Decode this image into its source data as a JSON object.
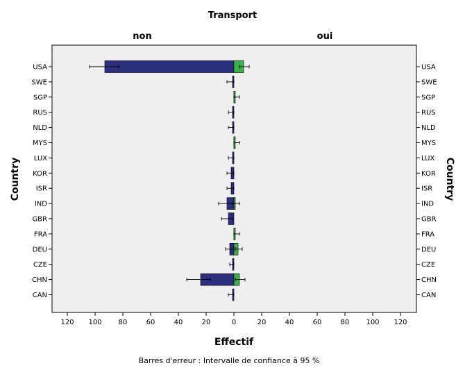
{
  "chart_data": {
    "type": "bar",
    "title": "Transport",
    "panels": [
      "non",
      "oui"
    ],
    "xlabel": "Effectif",
    "ylabel": "Country",
    "footnote": "Barres d'erreur : Intervalle de confiance à 95 %",
    "xlim": [
      -130,
      130
    ],
    "xticks": [
      120,
      100,
      80,
      60,
      40,
      20,
      0,
      20,
      40,
      60,
      80,
      100,
      120
    ],
    "categories": [
      "USA",
      "SWE",
      "SGP",
      "RUS",
      "NLD",
      "MYS",
      "LUX",
      "KOR",
      "ISR",
      "IND",
      "GBR",
      "FRA",
      "DEU",
      "CZE",
      "CHN",
      "CAN"
    ],
    "series": [
      {
        "name": "non",
        "color": "#2e2e7e",
        "values": [
          93,
          1,
          0,
          1,
          1,
          0,
          1,
          2,
          2,
          5,
          4,
          0,
          3,
          1,
          24,
          1
        ],
        "ci_low": [
          83,
          0,
          0,
          0,
          0,
          0,
          0,
          0,
          0,
          1,
          1,
          0,
          0,
          0,
          17,
          0
        ],
        "ci_high": [
          104,
          5,
          0,
          4,
          4,
          0,
          4,
          5,
          5,
          11,
          9,
          0,
          6,
          3,
          34,
          4
        ]
      },
      {
        "name": "oui",
        "color": "#3cb04a",
        "values": [
          7,
          0,
          1,
          0,
          0,
          1,
          0,
          0,
          0,
          1,
          0,
          1,
          3,
          0,
          4,
          0
        ],
        "ci_low": [
          4,
          0,
          0,
          0,
          0,
          0,
          0,
          0,
          0,
          0,
          0,
          0,
          1,
          0,
          1,
          0
        ],
        "ci_high": [
          11,
          0,
          4,
          0,
          0,
          4,
          0,
          0,
          0,
          4,
          0,
          4,
          6,
          0,
          8,
          0
        ]
      }
    ],
    "grid": false,
    "background_color": "#efefef"
  }
}
